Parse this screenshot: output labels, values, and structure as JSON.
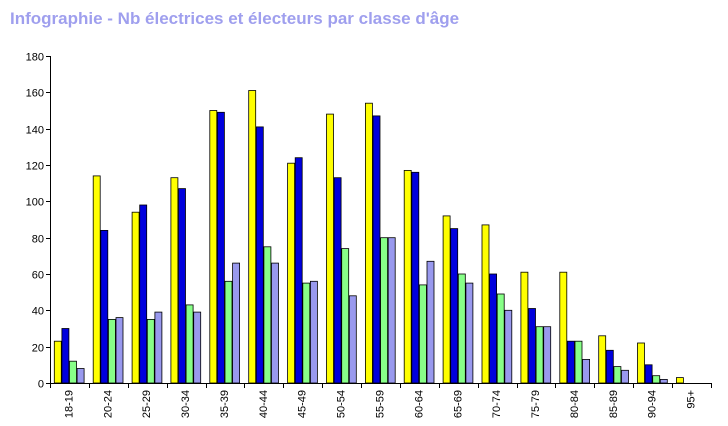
{
  "chart_data": {
    "type": "bar",
    "title": "Infographie - Nb électrices et électeurs par classe d'âge",
    "xlabel": "",
    "ylabel": "",
    "ylim": [
      0,
      180
    ],
    "yticks": [
      0,
      20,
      40,
      60,
      80,
      100,
      120,
      140,
      160,
      180
    ],
    "categories": [
      "18-19",
      "20-24",
      "25-29",
      "30-34",
      "35-39",
      "40-44",
      "45-49",
      "50-54",
      "55-59",
      "60-64",
      "65-69",
      "70-74",
      "75-79",
      "80-84",
      "85-89",
      "90-94",
      "95+"
    ],
    "series": [
      {
        "color": "#ffff00",
        "values": [
          23,
          114,
          94,
          113,
          150,
          161,
          121,
          148,
          154,
          117,
          92,
          87,
          61,
          61,
          26,
          22,
          3
        ]
      },
      {
        "color": "#0000dd",
        "values": [
          30,
          84,
          98,
          107,
          149,
          141,
          124,
          113,
          147,
          116,
          85,
          60,
          41,
          23,
          18,
          10,
          0
        ]
      },
      {
        "color": "#88ff88",
        "values": [
          12,
          35,
          35,
          43,
          56,
          75,
          55,
          74,
          80,
          54,
          60,
          49,
          31,
          23,
          9,
          4,
          0
        ]
      },
      {
        "color": "#9999ee",
        "values": [
          8,
          36,
          39,
          39,
          66,
          66,
          56,
          48,
          80,
          67,
          55,
          40,
          31,
          13,
          7,
          2,
          0
        ]
      }
    ],
    "grid": false,
    "legend": "none"
  }
}
